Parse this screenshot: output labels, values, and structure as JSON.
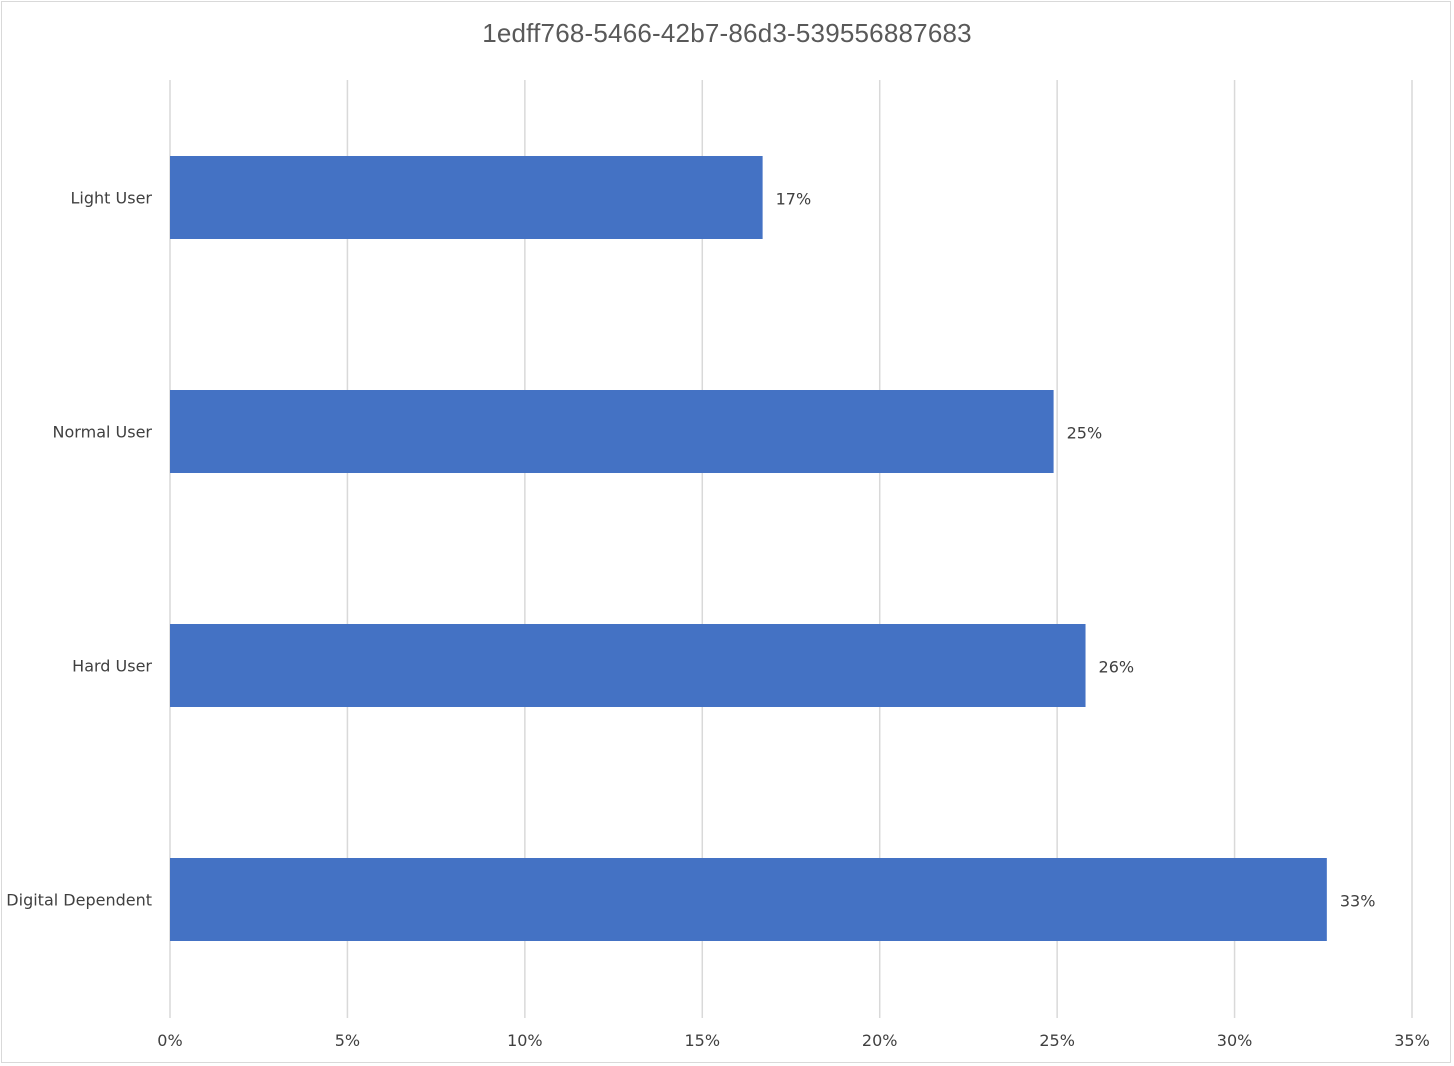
{
  "chart_data": {
    "type": "bar",
    "orientation": "horizontal",
    "title": "1edff768-5466-42b7-86d3-539556887683",
    "categories": [
      "Light User",
      "Normal User",
      "Hard User",
      "Digital Dependent"
    ],
    "values": [
      16.7,
      24.9,
      25.8,
      32.6
    ],
    "data_labels": [
      "17%",
      "25%",
      "26%",
      "33%"
    ],
    "x_ticks": [
      "0%",
      "5%",
      "10%",
      "15%",
      "20%",
      "25%",
      "30%",
      "35%"
    ],
    "xlim": [
      0,
      35
    ],
    "xlabel": "",
    "ylabel": "",
    "grid": "vertical",
    "legend": "none",
    "bar_color": "#4472c4",
    "grid_color": "#d9d9d9"
  }
}
